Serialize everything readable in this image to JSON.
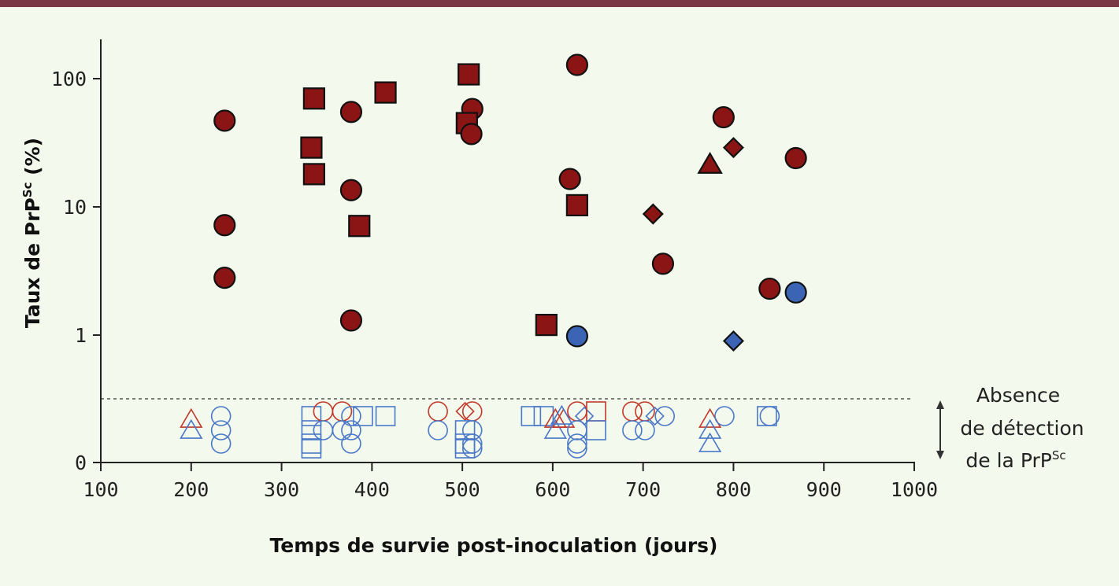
{
  "colors": {
    "positive_fill": "#8b1414",
    "positive_low_fill": "#3c64b4",
    "neg_red": "#c0392b",
    "neg_blue": "#4a78c8",
    "header_bar": "#7a3844",
    "background": "#f3f9ec"
  },
  "chart_data": {
    "type": "scatter",
    "xlabel": "Temps de survie post-inoculation (jours)",
    "ylabel": "Taux de PrP",
    "ylabel_sup": "Sc",
    "ylabel_unit": " (%)",
    "x_ticks": [
      "100",
      "200",
      "300",
      "400",
      "500",
      "600",
      "700",
      "800",
      "900",
      "1000"
    ],
    "xlim": [
      100,
      1000
    ],
    "y_scale": "log",
    "y_ticks": [
      "0",
      "1",
      "10",
      "100"
    ],
    "detection_threshold_note": [
      "Absence",
      "de détection",
      "de la PrP"
    ],
    "detection_threshold_sup": "Sc",
    "detected": [
      {
        "x": 237,
        "y": 47,
        "shape": "circle",
        "color": "red"
      },
      {
        "x": 237,
        "y": 7.2,
        "shape": "circle",
        "color": "red"
      },
      {
        "x": 237,
        "y": 2.8,
        "shape": "circle",
        "color": "red"
      },
      {
        "x": 336,
        "y": 70,
        "shape": "square",
        "color": "red"
      },
      {
        "x": 333,
        "y": 29,
        "shape": "square",
        "color": "red"
      },
      {
        "x": 336,
        "y": 18,
        "shape": "square",
        "color": "red"
      },
      {
        "x": 377,
        "y": 55,
        "shape": "circle",
        "color": "red"
      },
      {
        "x": 377,
        "y": 13.5,
        "shape": "circle",
        "color": "red"
      },
      {
        "x": 377,
        "y": 1.3,
        "shape": "circle",
        "color": "red"
      },
      {
        "x": 415,
        "y": 78,
        "shape": "square",
        "color": "red"
      },
      {
        "x": 386,
        "y": 7.1,
        "shape": "square",
        "color": "red"
      },
      {
        "x": 507,
        "y": 108,
        "shape": "square",
        "color": "red"
      },
      {
        "x": 511,
        "y": 58,
        "shape": "circle",
        "color": "red"
      },
      {
        "x": 505,
        "y": 45,
        "shape": "square",
        "color": "red"
      },
      {
        "x": 510,
        "y": 37,
        "shape": "circle",
        "color": "red"
      },
      {
        "x": 593,
        "y": 1.2,
        "shape": "square",
        "color": "red"
      },
      {
        "x": 627,
        "y": 128,
        "shape": "circle",
        "color": "red"
      },
      {
        "x": 619,
        "y": 16.5,
        "shape": "circle",
        "color": "red"
      },
      {
        "x": 627,
        "y": 10.3,
        "shape": "square",
        "color": "red"
      },
      {
        "x": 627,
        "y": 0.98,
        "shape": "circle",
        "color": "blue"
      },
      {
        "x": 711,
        "y": 8.8,
        "shape": "diamond",
        "color": "red"
      },
      {
        "x": 722,
        "y": 3.6,
        "shape": "circle",
        "color": "red"
      },
      {
        "x": 774,
        "y": 21.5,
        "shape": "triangle",
        "color": "red"
      },
      {
        "x": 800,
        "y": 29,
        "shape": "diamond",
        "color": "red"
      },
      {
        "x": 789,
        "y": 50,
        "shape": "circle",
        "color": "red"
      },
      {
        "x": 800,
        "y": 0.9,
        "shape": "diamond",
        "color": "blue"
      },
      {
        "x": 840,
        "y": 2.3,
        "shape": "circle",
        "color": "red"
      },
      {
        "x": 869,
        "y": 24,
        "shape": "circle",
        "color": "red"
      },
      {
        "x": 869,
        "y": 2.15,
        "shape": "circle",
        "color": "blue"
      }
    ],
    "not_detected": [
      {
        "x": 200,
        "shape": "triangle",
        "color": "red"
      },
      {
        "x": 200,
        "shape": "triangle",
        "color": "blue"
      },
      {
        "x": 233,
        "shape": "circle",
        "color": "blue"
      },
      {
        "x": 233,
        "shape": "circle",
        "color": "blue"
      },
      {
        "x": 233,
        "shape": "circle",
        "color": "blue"
      },
      {
        "x": 333,
        "shape": "square",
        "color": "blue"
      },
      {
        "x": 333,
        "shape": "square",
        "color": "blue"
      },
      {
        "x": 333,
        "shape": "square",
        "color": "blue"
      },
      {
        "x": 333,
        "shape": "square",
        "color": "blue"
      },
      {
        "x": 346,
        "shape": "circle",
        "color": "red"
      },
      {
        "x": 346,
        "shape": "circle",
        "color": "blue"
      },
      {
        "x": 367,
        "shape": "circle",
        "color": "red"
      },
      {
        "x": 367,
        "shape": "circle",
        "color": "blue"
      },
      {
        "x": 377,
        "shape": "circle",
        "color": "blue"
      },
      {
        "x": 377,
        "shape": "circle",
        "color": "blue"
      },
      {
        "x": 377,
        "shape": "circle",
        "color": "blue"
      },
      {
        "x": 390,
        "shape": "square",
        "color": "blue"
      },
      {
        "x": 415,
        "shape": "square",
        "color": "blue"
      },
      {
        "x": 473,
        "shape": "circle",
        "color": "red"
      },
      {
        "x": 473,
        "shape": "circle",
        "color": "blue"
      },
      {
        "x": 503,
        "shape": "diamond",
        "color": "red"
      },
      {
        "x": 511,
        "shape": "circle",
        "color": "red"
      },
      {
        "x": 503,
        "shape": "square",
        "color": "blue"
      },
      {
        "x": 503,
        "shape": "square",
        "color": "blue"
      },
      {
        "x": 503,
        "shape": "square",
        "color": "blue"
      },
      {
        "x": 511,
        "shape": "circle",
        "color": "blue"
      },
      {
        "x": 511,
        "shape": "circle",
        "color": "blue"
      },
      {
        "x": 511,
        "shape": "circle",
        "color": "blue"
      },
      {
        "x": 576,
        "shape": "square",
        "color": "blue"
      },
      {
        "x": 590,
        "shape": "square",
        "color": "blue"
      },
      {
        "x": 603,
        "shape": "triangle",
        "color": "red"
      },
      {
        "x": 603,
        "shape": "triangle",
        "color": "blue"
      },
      {
        "x": 612,
        "shape": "triangle",
        "color": "red"
      },
      {
        "x": 610,
        "shape": "triangle",
        "color": "blue"
      },
      {
        "x": 627,
        "shape": "circle",
        "color": "red"
      },
      {
        "x": 627,
        "shape": "circle",
        "color": "blue"
      },
      {
        "x": 627,
        "shape": "circle",
        "color": "blue"
      },
      {
        "x": 627,
        "shape": "circle",
        "color": "blue"
      },
      {
        "x": 635,
        "shape": "diamond",
        "color": "blue"
      },
      {
        "x": 648,
        "shape": "square",
        "color": "red"
      },
      {
        "x": 648,
        "shape": "square",
        "color": "blue"
      },
      {
        "x": 688,
        "shape": "circle",
        "color": "red"
      },
      {
        "x": 688,
        "shape": "circle",
        "color": "blue"
      },
      {
        "x": 702,
        "shape": "circle",
        "color": "red"
      },
      {
        "x": 702,
        "shape": "circle",
        "color": "blue"
      },
      {
        "x": 713,
        "shape": "diamond",
        "color": "blue"
      },
      {
        "x": 724,
        "shape": "circle",
        "color": "blue"
      },
      {
        "x": 774,
        "shape": "triangle",
        "color": "red"
      },
      {
        "x": 774,
        "shape": "triangle",
        "color": "blue"
      },
      {
        "x": 774,
        "shape": "triangle",
        "color": "blue"
      },
      {
        "x": 790,
        "shape": "circle",
        "color": "blue"
      },
      {
        "x": 837,
        "shape": "square",
        "color": "blue"
      },
      {
        "x": 840,
        "shape": "circle",
        "color": "blue"
      }
    ]
  }
}
